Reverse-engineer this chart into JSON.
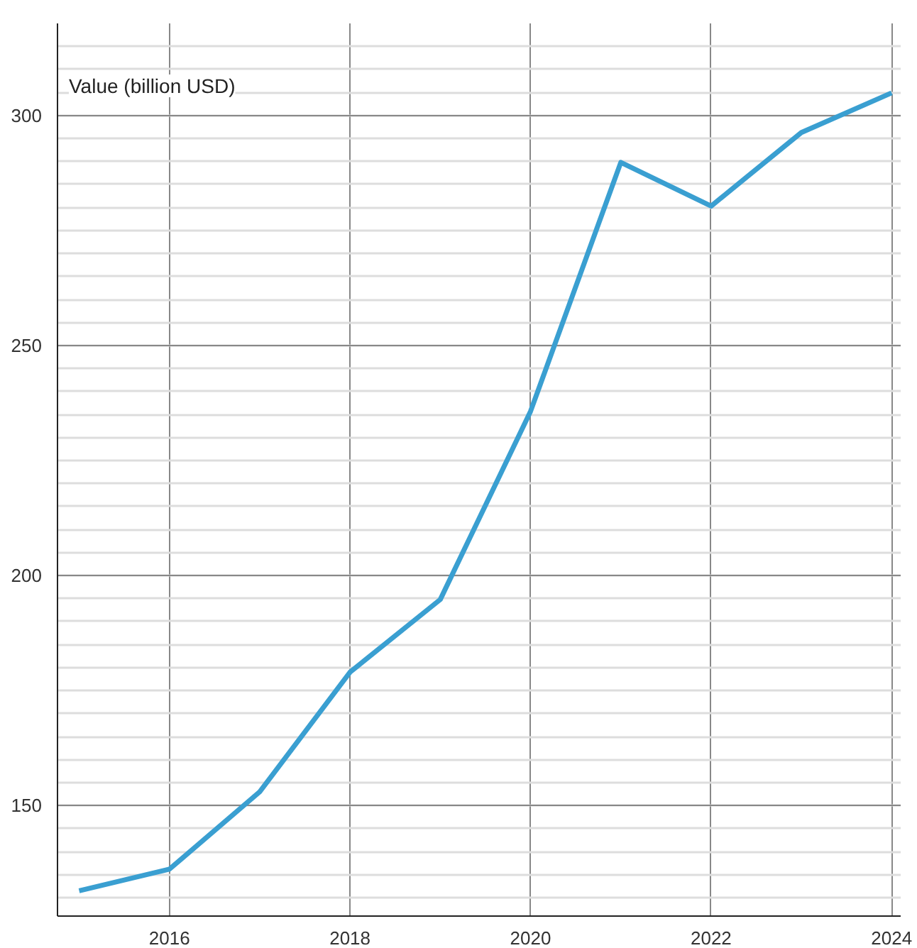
{
  "chart_data": {
    "type": "line",
    "ylabel": "Value (billion USD)",
    "x": [
      2015,
      2016,
      2017,
      2018,
      2019,
      2020,
      2021,
      2022,
      2023,
      2024
    ],
    "series": [
      {
        "color": "#3a9fd1",
        "values": [
          131.5,
          136.2,
          153,
          179,
          194.8,
          235.7,
          289.8,
          280.3,
          296.3,
          304.9
        ]
      }
    ],
    "xlim": [
      2014.76,
      2024.1
    ],
    "ylim": [
      126,
      320
    ],
    "xticks": [
      2016,
      2018,
      2020,
      2022,
      2024
    ],
    "yticks": [
      150,
      200,
      250,
      300
    ],
    "grid": true,
    "marker": "none",
    "line_style": "solid"
  }
}
